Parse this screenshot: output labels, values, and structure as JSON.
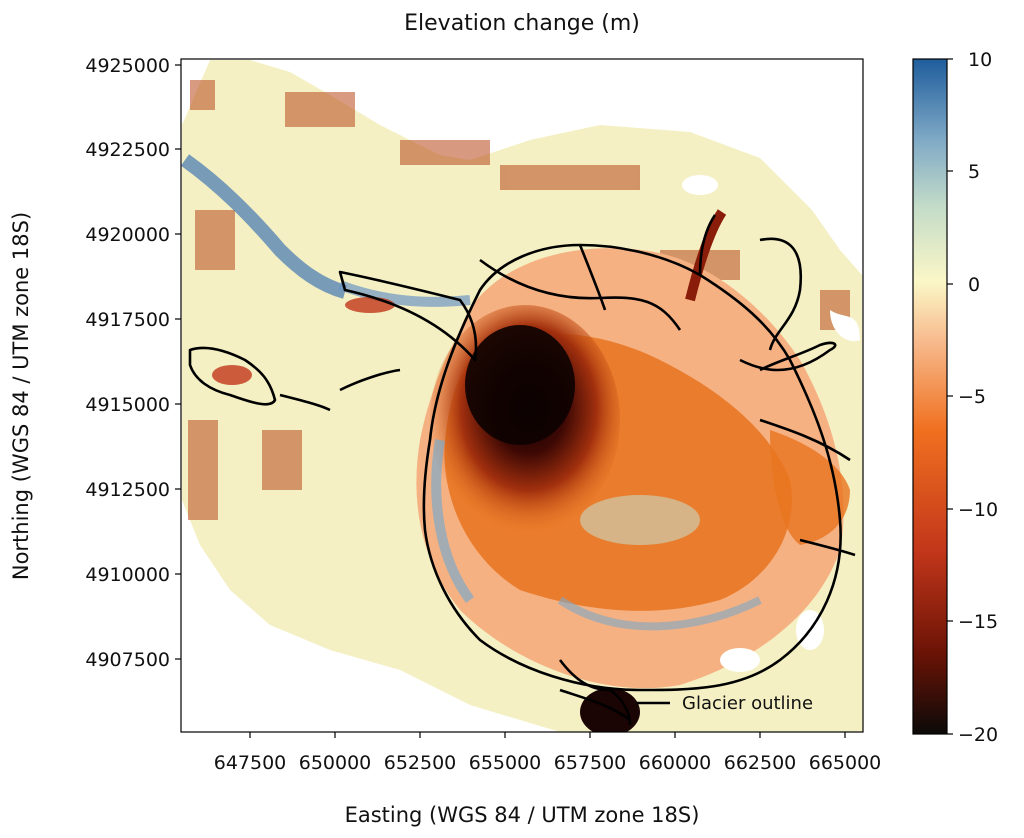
{
  "title": "Elevation change (m)",
  "xlabel": "Easting (WGS 84 / UTM zone 18S)",
  "ylabel": "Northing (WGS 84 / UTM zone 18S)",
  "x_ticks": [
    "647500",
    "650000",
    "652500",
    "655000",
    "657500",
    "660000",
    "662500",
    "665000"
  ],
  "y_ticks": [
    "4925000",
    "4922500",
    "4920000",
    "4917500",
    "4915000",
    "4912500",
    "4910000",
    "4907500"
  ],
  "colorbar": {
    "ticks": [
      "10",
      "5",
      "0",
      "−5",
      "−10",
      "−15",
      "−20"
    ],
    "colors": [
      "#0b0a08",
      "#6b1306",
      "#c2361a",
      "#f07020",
      "#f7b98b",
      "#fbf7c7",
      "#c4dcc8",
      "#7fa9c6",
      "#1f5d9c"
    ]
  },
  "legend": {
    "label": "Glacier outline",
    "line_color": "#000000"
  },
  "colors": {
    "neutral": "#f4f0c4",
    "strong_loss": "#140303",
    "moderate_loss": "#e86a1c",
    "gain": "#4f7fb3"
  }
}
